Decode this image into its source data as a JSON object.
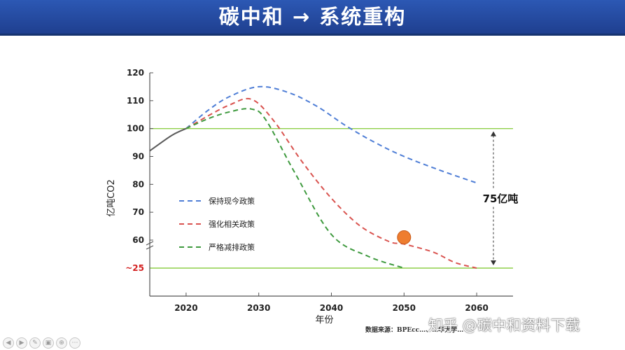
{
  "slide": {
    "title": "碳中和 → 系统重构"
  },
  "chart_data": {
    "type": "line",
    "xlabel": "年份",
    "ylabel": "亿吨CO2",
    "xlim": [
      2015,
      2065
    ],
    "ylim": [
      20,
      120
    ],
    "x_ticks": [
      "2020",
      "2030",
      "2040",
      "2050",
      "2060"
    ],
    "y_ticks": [
      "120",
      "110",
      "100",
      "90",
      "80",
      "70",
      "60"
    ],
    "y_break_label": "~25",
    "y_break_value": 25,
    "reference_lines": [
      100,
      25
    ],
    "gap_annotation": "75亿吨",
    "historical": {
      "x": [
        2015,
        2018,
        2020
      ],
      "y": [
        92,
        97.5,
        100
      ],
      "color": "#5a5a5a"
    },
    "series": [
      {
        "name": "保持现今政策",
        "color": "#4f7ed6",
        "x": [
          2020,
          2023,
          2026,
          2030,
          2034,
          2038,
          2042,
          2046,
          2050,
          2055,
          2060
        ],
        "y": [
          100,
          106.5,
          111.5,
          115,
          113,
          108,
          101,
          95,
          90,
          85,
          80.5
        ]
      },
      {
        "name": "强化相关政策",
        "color": "#d9534f",
        "x": [
          2020,
          2023,
          2026,
          2029,
          2032,
          2036,
          2040,
          2044,
          2048,
          2050,
          2054,
          2057,
          2060
        ],
        "y": [
          100,
          104.5,
          108.5,
          110.5,
          103,
          88,
          75,
          65,
          58,
          55,
          45,
          32,
          25
        ]
      },
      {
        "name": "严格减排政策",
        "color": "#3f9a3f",
        "x": [
          2020,
          2023,
          2026,
          2029,
          2031,
          2035,
          2040,
          2045,
          2050
        ],
        "y": [
          100,
          103.5,
          106,
          107,
          103,
          84,
          62,
          40,
          25
        ]
      }
    ],
    "highlight_point": {
      "x": 2050,
      "y": 61,
      "color": "#ee7d2f"
    },
    "source_note": "数据来源：BPEcc…、…华大学…"
  },
  "watermark": "知乎 @碳中和资料下载"
}
